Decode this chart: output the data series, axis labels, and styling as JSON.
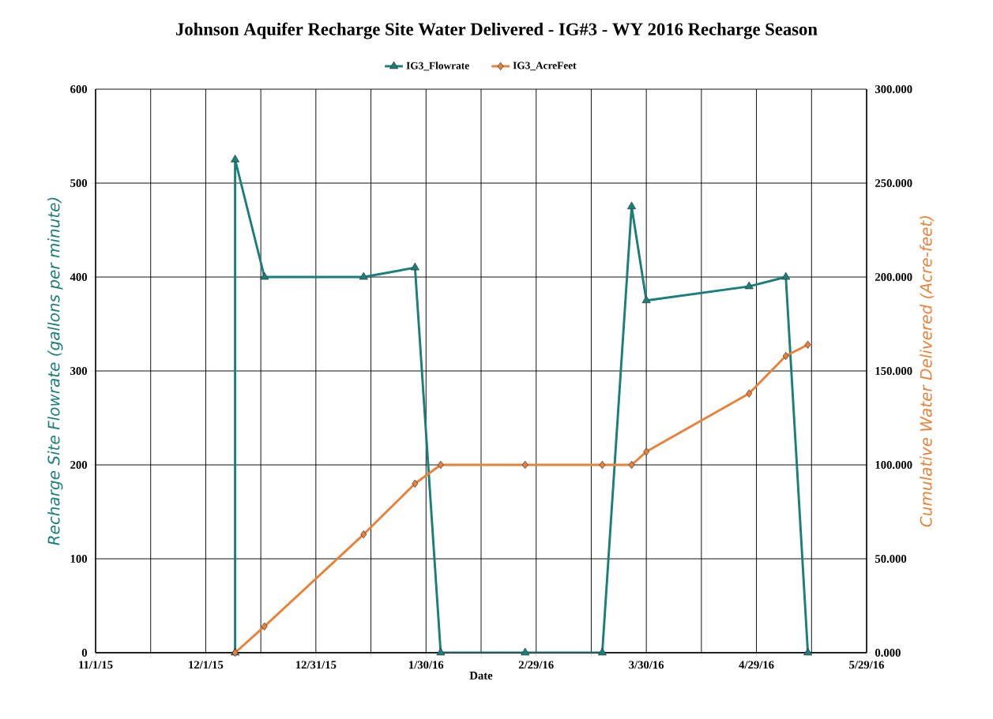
{
  "chart_data": {
    "type": "line",
    "title": "Johnson Aquifer Recharge Site Water Delivered  - IG#3 - WY 2016 Recharge Season",
    "xlabel": "Date",
    "ylabel": "Recharge Site Flowrate (gallons per minute)",
    "y2label": "Cumulative Water Delivered (Acre-feet)",
    "legend": "top",
    "grid": true,
    "xlim": [
      "2015-11-01",
      "2016-05-29"
    ],
    "xticks": [
      {
        "value": "2015-11-01",
        "label": "11/1/15"
      },
      {
        "value": "2015-11-16",
        "label": null
      },
      {
        "value": "2015-12-01",
        "label": "12/1/15"
      },
      {
        "value": "2015-12-16",
        "label": null
      },
      {
        "value": "2015-12-31",
        "label": "12/31/15"
      },
      {
        "value": "2016-01-15",
        "label": null
      },
      {
        "value": "2016-01-30",
        "label": "1/30/16"
      },
      {
        "value": "2016-02-14",
        "label": null
      },
      {
        "value": "2016-02-29",
        "label": "2/29/16"
      },
      {
        "value": "2016-03-15",
        "label": null
      },
      {
        "value": "2016-03-30",
        "label": "3/30/16"
      },
      {
        "value": "2016-04-14",
        "label": null
      },
      {
        "value": "2016-04-29",
        "label": "4/29/16"
      },
      {
        "value": "2016-05-14",
        "label": null
      },
      {
        "value": "2016-05-29",
        "label": "5/29/16"
      }
    ],
    "ylim": [
      0,
      600
    ],
    "yticks": [
      0,
      100,
      200,
      300,
      400,
      500,
      600
    ],
    "y2lim": [
      0,
      300
    ],
    "y2ticks": [
      {
        "value": 0,
        "label": "0.000"
      },
      {
        "value": 50,
        "label": "50.000"
      },
      {
        "value": 100,
        "label": "100.000"
      },
      {
        "value": 150,
        "label": "150.000"
      },
      {
        "value": 200,
        "label": "200.000"
      },
      {
        "value": 250,
        "label": "250.000"
      },
      {
        "value": 300,
        "label": "300.000"
      }
    ],
    "series": [
      {
        "name": "IG3_Flowrate",
        "color": "#1a7f7a",
        "marker": "triangle",
        "axis": "y",
        "x": [
          "2015-12-09",
          "2015-12-09",
          "2015-12-17",
          "2016-01-13",
          "2016-01-27",
          "2016-02-03",
          "2016-02-26",
          "2016-03-18",
          "2016-03-26",
          "2016-03-30",
          "2016-04-27",
          "2016-05-07",
          "2016-05-13"
        ],
        "values": [
          0,
          525,
          400,
          400,
          410,
          0,
          0,
          0,
          475,
          375,
          390,
          400,
          0
        ]
      },
      {
        "name": "IG3_AcreFeet",
        "color": "#e8823a",
        "marker": "diamond",
        "axis": "y2",
        "x": [
          "2015-12-09",
          "2015-12-17",
          "2016-01-13",
          "2016-01-27",
          "2016-02-03",
          "2016-02-26",
          "2016-03-18",
          "2016-03-26",
          "2016-03-30",
          "2016-04-27",
          "2016-05-07",
          "2016-05-13"
        ],
        "values": [
          0,
          14,
          63,
          90,
          100,
          100,
          100,
          100,
          107,
          138,
          158,
          164
        ]
      }
    ]
  }
}
